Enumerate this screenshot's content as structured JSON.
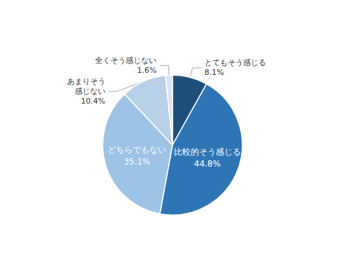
{
  "chart_data": {
    "type": "pie",
    "categories": [
      "とてもそう感じる",
      "比較的そう感じる",
      "どちらでもない",
      "あまりそう\n感じない",
      "全くそう感じない"
    ],
    "values": [
      8.1,
      44.8,
      35.1,
      10.4,
      1.6
    ],
    "value_labels": [
      "8.1%",
      "44.8%",
      "35.1%",
      "10.4%",
      "1.6%"
    ],
    "colors": [
      "#1f4e79",
      "#2e75b6",
      "#9dc3e6",
      "#b8cfe8",
      "#d6e4f5"
    ],
    "data_labels": true
  }
}
